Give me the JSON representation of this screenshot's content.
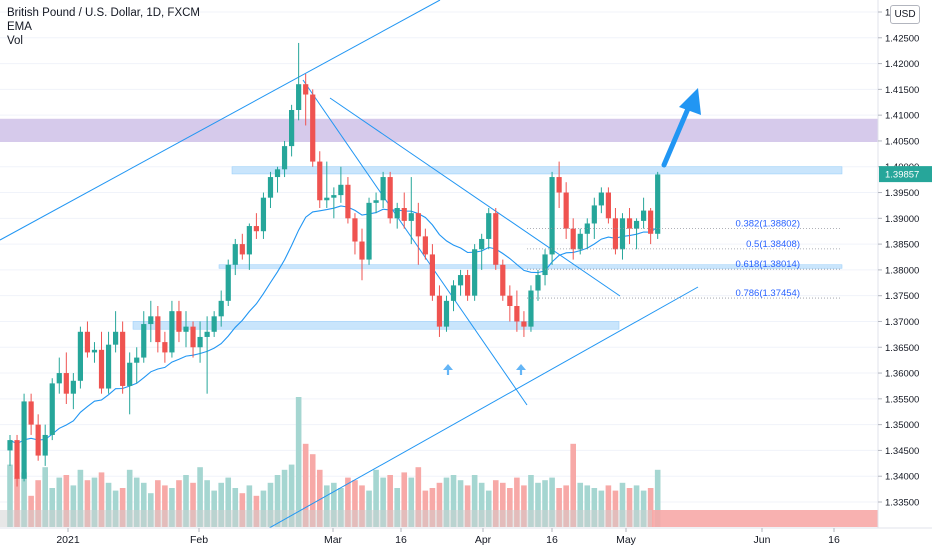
{
  "legend": {
    "symbol": "British Pound / U.S. Dollar, 1D, FXCM",
    "indicator_1": "EMA",
    "indicator_2": "Vol"
  },
  "currency_button": "USD",
  "price_label": "1.39857",
  "colors": {
    "up": "#26a69a",
    "down": "#ef5350",
    "resistance_zone": "#d1c4e9",
    "support_zone": "#bbdefb",
    "lines": "#2196f3",
    "arrow": "#2196f3",
    "price_tag": "#26a69a"
  },
  "fib_levels": [
    {
      "label": "0.382(1.38802)",
      "price": 1.38802
    },
    {
      "label": "0.5(1.38408)",
      "price": 1.38408
    },
    {
      "label": "0.618(1.38014)",
      "price": 1.38014
    },
    {
      "label": "0.786(1.37454)",
      "price": 1.37454
    }
  ],
  "chart_data": {
    "type": "candlestick",
    "title": "British Pound / U.S. Dollar, 1D, FXCM",
    "y_axis": {
      "ticks": [
        "1.43000",
        "1.42500",
        "1.42000",
        "1.41500",
        "1.41000",
        "1.40500",
        "1.40000",
        "1.39500",
        "1.39000",
        "1.38500",
        "1.38000",
        "1.37500",
        "1.37000",
        "1.36500",
        "1.36000",
        "1.35500",
        "1.35000",
        "1.34500",
        "1.34000",
        "1.33500"
      ],
      "range": [
        1.3335,
        1.4312
      ]
    },
    "x_axis": {
      "labels": [
        "2021",
        "Feb",
        "Mar",
        "16",
        "Apr",
        "16",
        "May",
        "Jun",
        "16"
      ],
      "label_dates": [
        "2021-01-01",
        "2021-02-01",
        "2021-03-01",
        "2021-03-16",
        "2021-04-01",
        "2021-04-16",
        "2021-05-03",
        "2021-06-01",
        "2021-06-16"
      ]
    },
    "zones": [
      {
        "name": "resistance",
        "from": 1.4048,
        "to": 1.4093
      },
      {
        "name": "upper-support",
        "from": 1.3986,
        "to": 1.4
      },
      {
        "name": "mid-support",
        "from": 1.3803,
        "to": 1.381
      },
      {
        "name": "lower-support",
        "from": 1.3685,
        "to": 1.37
      }
    ],
    "last_price": 1.39857,
    "candles": [
      [
        1.345,
        1.348,
        1.342,
        1.347
      ],
      [
        1.347,
        1.348,
        1.338,
        1.3395
      ],
      [
        1.3395,
        1.356,
        1.339,
        1.3545
      ],
      [
        1.3545,
        1.356,
        1.348,
        1.35
      ],
      [
        1.35,
        1.352,
        1.343,
        1.344
      ],
      [
        1.344,
        1.35,
        1.342,
        1.348
      ],
      [
        1.348,
        1.359,
        1.347,
        1.358
      ],
      [
        1.358,
        1.363,
        1.356,
        1.36
      ],
      [
        1.36,
        1.364,
        1.354,
        1.356
      ],
      [
        1.356,
        1.36,
        1.353,
        1.3585
      ],
      [
        1.3585,
        1.369,
        1.357,
        1.368
      ],
      [
        1.368,
        1.37,
        1.363,
        1.364
      ],
      [
        1.364,
        1.366,
        1.362,
        1.3645
      ],
      [
        1.3645,
        1.368,
        1.356,
        1.357
      ],
      [
        1.357,
        1.368,
        1.356,
        1.3655
      ],
      [
        1.3655,
        1.372,
        1.364,
        1.368
      ],
      [
        1.368,
        1.37,
        1.356,
        1.3575
      ],
      [
        1.3575,
        1.364,
        1.352,
        1.362
      ],
      [
        1.362,
        1.365,
        1.358,
        1.363
      ],
      [
        1.363,
        1.372,
        1.362,
        1.3695
      ],
      [
        1.3695,
        1.374,
        1.366,
        1.371
      ],
      [
        1.371,
        1.373,
        1.364,
        1.366
      ],
      [
        1.366,
        1.368,
        1.362,
        1.364
      ],
      [
        1.364,
        1.374,
        1.363,
        1.372
      ],
      [
        1.372,
        1.374,
        1.366,
        1.368
      ],
      [
        1.368,
        1.372,
        1.365,
        1.369
      ],
      [
        1.369,
        1.37,
        1.363,
        1.365
      ],
      [
        1.365,
        1.37,
        1.362,
        1.367
      ],
      [
        1.367,
        1.371,
        1.356,
        1.368
      ],
      [
        1.368,
        1.372,
        1.367,
        1.371
      ],
      [
        1.371,
        1.376,
        1.369,
        1.374
      ],
      [
        1.374,
        1.382,
        1.373,
        1.381
      ],
      [
        1.381,
        1.386,
        1.379,
        1.385
      ],
      [
        1.385,
        1.387,
        1.382,
        1.383
      ],
      [
        1.383,
        1.389,
        1.38,
        1.3885
      ],
      [
        1.3885,
        1.391,
        1.386,
        1.3875
      ],
      [
        1.3875,
        1.395,
        1.386,
        1.394
      ],
      [
        1.394,
        1.399,
        1.392,
        1.398
      ],
      [
        1.398,
        1.4,
        1.395,
        1.3995
      ],
      [
        1.3995,
        1.405,
        1.398,
        1.404
      ],
      [
        1.404,
        1.412,
        1.402,
        1.411
      ],
      [
        1.411,
        1.424,
        1.409,
        1.416
      ],
      [
        1.416,
        1.418,
        1.408,
        1.414
      ],
      [
        1.414,
        1.415,
        1.4,
        1.401
      ],
      [
        1.401,
        1.403,
        1.392,
        1.3935
      ],
      [
        1.3935,
        1.401,
        1.392,
        1.394
      ],
      [
        1.394,
        1.396,
        1.39,
        1.3945
      ],
      [
        1.3945,
        1.4,
        1.393,
        1.3965
      ],
      [
        1.3965,
        1.398,
        1.389,
        1.39
      ],
      [
        1.39,
        1.391,
        1.383,
        1.3855
      ],
      [
        1.3855,
        1.388,
        1.378,
        1.382
      ],
      [
        1.382,
        1.394,
        1.381,
        1.393
      ],
      [
        1.393,
        1.395,
        1.391,
        1.3935
      ],
      [
        1.3935,
        1.399,
        1.392,
        1.398
      ],
      [
        1.398,
        1.399,
        1.389,
        1.39
      ],
      [
        1.39,
        1.393,
        1.388,
        1.392
      ],
      [
        1.392,
        1.395,
        1.388,
        1.3895
      ],
      [
        1.3895,
        1.398,
        1.385,
        1.391
      ],
      [
        1.391,
        1.393,
        1.381,
        1.3865
      ],
      [
        1.3865,
        1.388,
        1.382,
        1.383
      ],
      [
        1.383,
        1.385,
        1.374,
        1.375
      ],
      [
        1.375,
        1.377,
        1.367,
        1.369
      ],
      [
        1.369,
        1.375,
        1.368,
        1.374
      ],
      [
        1.374,
        1.378,
        1.372,
        1.377
      ],
      [
        1.377,
        1.38,
        1.375,
        1.379
      ],
      [
        1.379,
        1.38,
        1.374,
        1.375
      ],
      [
        1.375,
        1.385,
        1.374,
        1.384
      ],
      [
        1.384,
        1.387,
        1.38,
        1.386
      ],
      [
        1.386,
        1.392,
        1.384,
        1.391
      ],
      [
        1.391,
        1.392,
        1.38,
        1.381
      ],
      [
        1.381,
        1.382,
        1.374,
        1.375
      ],
      [
        1.375,
        1.377,
        1.37,
        1.373
      ],
      [
        1.373,
        1.376,
        1.368,
        1.37
      ],
      [
        1.37,
        1.372,
        1.367,
        1.369
      ],
      [
        1.369,
        1.377,
        1.368,
        1.376
      ],
      [
        1.376,
        1.38,
        1.374,
        1.379
      ],
      [
        1.379,
        1.384,
        1.377,
        1.383
      ],
      [
        1.383,
        1.399,
        1.381,
        1.398
      ],
      [
        1.398,
        1.401,
        1.392,
        1.395
      ],
      [
        1.395,
        1.397,
        1.386,
        1.388
      ],
      [
        1.388,
        1.39,
        1.382,
        1.384
      ],
      [
        1.384,
        1.388,
        1.383,
        1.387
      ],
      [
        1.387,
        1.39,
        1.384,
        1.389
      ],
      [
        1.389,
        1.394,
        1.386,
        1.3925
      ],
      [
        1.3925,
        1.396,
        1.391,
        1.395
      ],
      [
        1.395,
        1.396,
        1.389,
        1.39
      ],
      [
        1.39,
        1.392,
        1.383,
        1.384
      ],
      [
        1.384,
        1.391,
        1.382,
        1.39
      ],
      [
        1.39,
        1.392,
        1.385,
        1.388
      ],
      [
        1.388,
        1.39,
        1.384,
        1.3895
      ],
      [
        1.3895,
        1.394,
        1.388,
        1.3915
      ],
      [
        1.3915,
        1.392,
        1.385,
        1.387
      ],
      [
        1.387,
        1.399,
        1.386,
        1.3985
      ]
    ],
    "volume": [
      120,
      95,
      105,
      60,
      90,
      115,
      75,
      95,
      100,
      80,
      110,
      90,
      95,
      105,
      85,
      70,
      75,
      110,
      95,
      85,
      65,
      90,
      80,
      75,
      90,
      100,
      85,
      115,
      90,
      70,
      85,
      95,
      75,
      65,
      80,
      60,
      70,
      85,
      100,
      110,
      120,
      250,
      160,
      140,
      110,
      80,
      85,
      75,
      95,
      90,
      80,
      70,
      110,
      95,
      100,
      75,
      105,
      95,
      115,
      70,
      75,
      85,
      95,
      100,
      90,
      80,
      100,
      85,
      70,
      90,
      85,
      75,
      95,
      80,
      100,
      85,
      90,
      95,
      75,
      80,
      160,
      85,
      80,
      75,
      70,
      80,
      70,
      85,
      75,
      80,
      70,
      75,
      110
    ],
    "ema": "exponential moving average of closes",
    "annotations": {
      "arrow": "bullish up arrow after breakout",
      "up_markers": 2
    }
  }
}
